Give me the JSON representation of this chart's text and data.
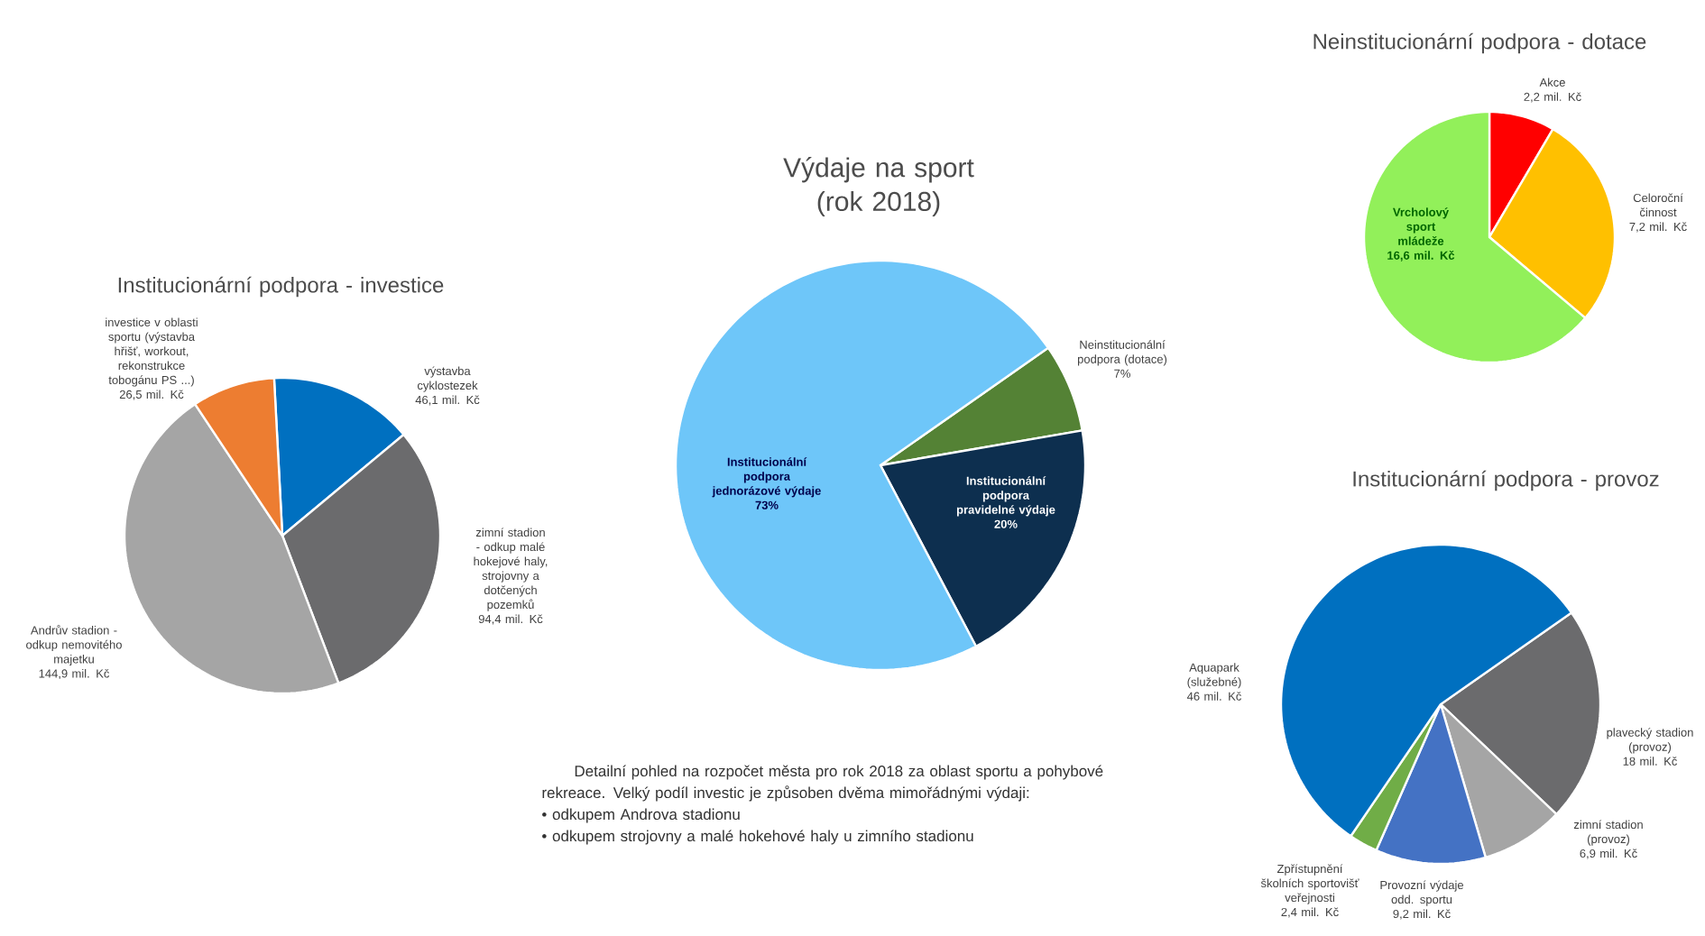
{
  "chart_data": [
    {
      "type": "pie",
      "title": "Výdaje na sport (rok 2018)",
      "categories": [
        "Neinstitucionální podpora (dotace)",
        "Institucionální podpora pravidelné výdaje",
        "Institucionální podpora jednorázové výdaje"
      ],
      "values": [
        7,
        20,
        73
      ],
      "colors": [
        "#548235",
        "#0d2f4f",
        "#6ec6f9"
      ],
      "value_labels": [
        "7%",
        "20%",
        "73%"
      ],
      "annotations": [
        "Detailní pohled na rozpočet města pro rok 2018 za oblast sportu a pohybové rekreace. Velký podíl investic je způsoben dvěma mimořádnými výdaji:",
        "• odkupem Androva stadionu",
        "• odkupem strojovny a malé hokehové haly u zimního stadionu"
      ]
    },
    {
      "type": "pie",
      "title": "Institucionární podpora - investice",
      "categories": [
        "výstavba cyklostezek",
        "zimní stadion - odkup malé hokejové haly, strojovny a dotčených pozemků",
        "Andrův stadion - odkup nemovitého majetku",
        "investice v oblasti sportu (výstavba hřišť, workout, rekonstrukce tobogánu PS ...)"
      ],
      "values": [
        46.1,
        94.4,
        144.9,
        26.5
      ],
      "colors": [
        "#0070c0",
        "#6b6b6d",
        "#a5a5a5",
        "#ed7d31"
      ],
      "value_labels": [
        "46,1 mil. Kč",
        "94,4 mil. Kč",
        "144,9 mil. Kč",
        "26,5 mil. Kč"
      ]
    },
    {
      "type": "pie",
      "title": "Neinstitucionární podpora - dotace",
      "categories": [
        "Akce",
        "Celoroční činnost",
        "Vrcholový sport mládeže"
      ],
      "values": [
        2.2,
        7.2,
        16.6
      ],
      "colors": [
        "#ff0000",
        "#ffc000",
        "#92f05a"
      ],
      "value_labels": [
        "2,2 mil. Kč",
        "7,2 mil. Kč",
        "16,6 mil. Kč"
      ]
    },
    {
      "type": "pie",
      "title": "Institucionární podpora - provoz",
      "categories": [
        "plavecký stadion (provoz)",
        "zimní stadion (provoz)",
        "Provozní výdaje odd. sportu",
        "Zpřístupnění školních sportovišť veřejnosti",
        "Aquapark (služebné)"
      ],
      "values": [
        18,
        6.9,
        9.2,
        2.4,
        46
      ],
      "colors": [
        "#6b6b6d",
        "#a5a5a5",
        "#4472c4",
        "#70ad47",
        "#0070c0"
      ],
      "value_labels": [
        "18 mil. Kč",
        "6,9 mil. Kč",
        "9,2 mil. Kč",
        "2,4 mil. Kč",
        "46 mil. Kč"
      ]
    }
  ]
}
